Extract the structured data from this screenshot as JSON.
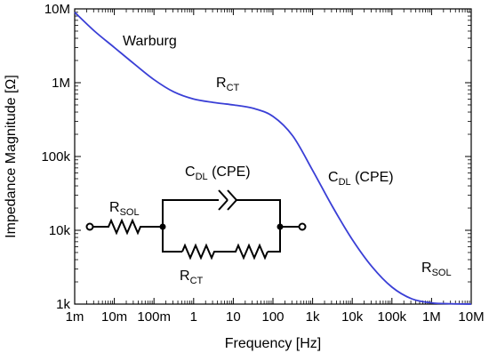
{
  "chart_data": {
    "type": "line",
    "xlabel": "Frequency [Hz]",
    "ylabel": "Impedance Magnitude [Ω]",
    "x_scale": "log",
    "y_scale": "log",
    "xlim": [
      0.001,
      10000000
    ],
    "ylim": [
      1000,
      10000000
    ],
    "grid": false,
    "x_ticks": [
      {
        "value": 0.001,
        "label": "1m"
      },
      {
        "value": 0.01,
        "label": "10m"
      },
      {
        "value": 0.1,
        "label": "100m"
      },
      {
        "value": 1,
        "label": "1"
      },
      {
        "value": 10,
        "label": "10"
      },
      {
        "value": 100,
        "label": "100"
      },
      {
        "value": 1000,
        "label": "1k"
      },
      {
        "value": 10000,
        "label": "10k"
      },
      {
        "value": 100000,
        "label": "100k"
      },
      {
        "value": 1000000,
        "label": "1M"
      },
      {
        "value": 10000000,
        "label": "10M"
      }
    ],
    "y_ticks": [
      {
        "value": 1000,
        "label": "1k"
      },
      {
        "value": 10000,
        "label": "10k"
      },
      {
        "value": 100000,
        "label": "100k"
      },
      {
        "value": 1000000,
        "label": "1M"
      },
      {
        "value": 10000000,
        "label": "10M"
      }
    ],
    "series": [
      {
        "color": "#3a3fd6",
        "points": [
          [
            0.001,
            9000000
          ],
          [
            0.00316,
            5000000
          ],
          [
            0.01,
            3000000
          ],
          [
            0.0316,
            1800000
          ],
          [
            0.1,
            1100000
          ],
          [
            0.316,
            750000
          ],
          [
            1,
            600000
          ],
          [
            3.16,
            540000
          ],
          [
            10,
            500000
          ],
          [
            31.6,
            450000
          ],
          [
            100,
            350000
          ],
          [
            316,
            190000
          ],
          [
            1000,
            65000
          ],
          [
            3162,
            21000
          ],
          [
            10000,
            7500
          ],
          [
            31620,
            3200
          ],
          [
            100000,
            1700
          ],
          [
            316200,
            1180
          ],
          [
            1000000,
            1040
          ],
          [
            3162000,
            1010
          ],
          [
            10000000,
            1000
          ]
        ]
      }
    ],
    "annotations": [
      {
        "id": "warburg",
        "main": "Warburg",
        "sub": ""
      },
      {
        "id": "rct",
        "main": "R",
        "sub": "CT"
      },
      {
        "id": "cdl",
        "main": "C",
        "sub": "DL",
        "suffix": " (CPE)"
      },
      {
        "id": "rsol",
        "main": "R",
        "sub": "SOL"
      }
    ],
    "circuit_labels": {
      "rsol": {
        "main": "R",
        "sub": "SOL"
      },
      "cdl": {
        "main": "C",
        "sub": "DL",
        "suffix": " (CPE)"
      },
      "rct": {
        "main": "R",
        "sub": "CT"
      }
    }
  }
}
